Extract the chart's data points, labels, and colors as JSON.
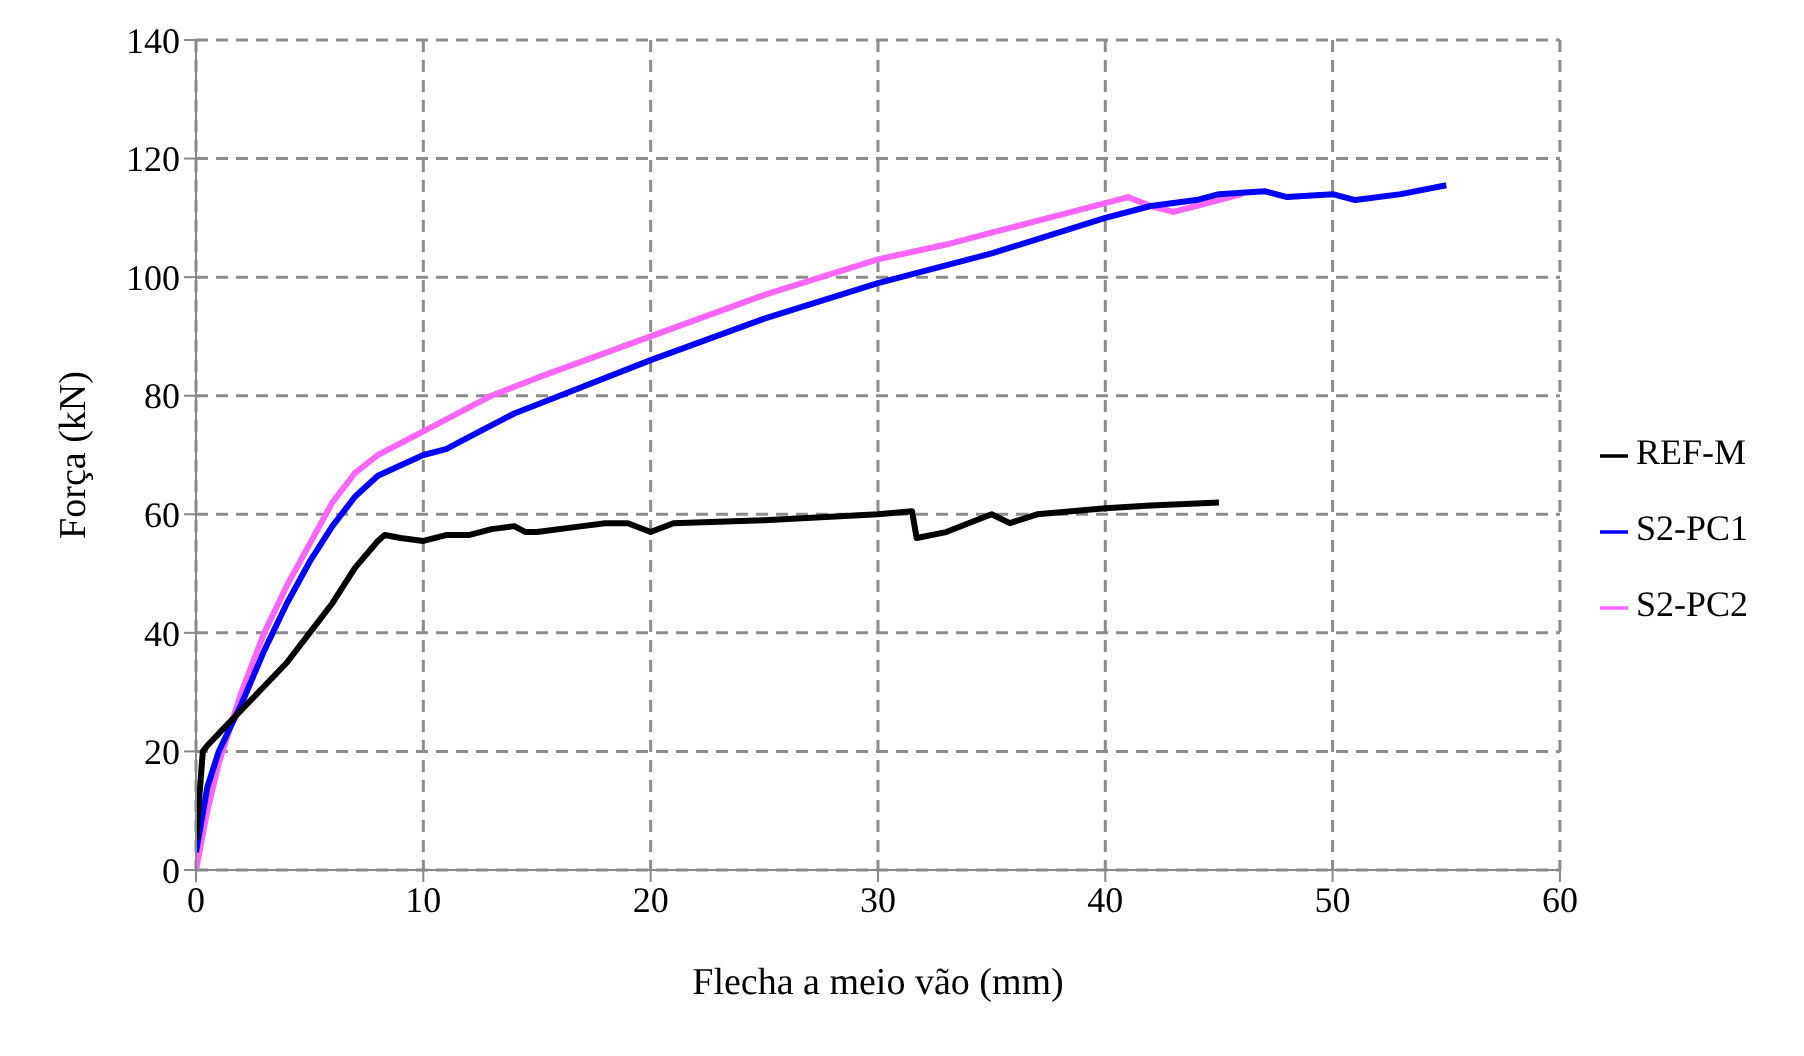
{
  "chart_data": {
    "type": "line",
    "xlabel": "Flecha a meio vão (mm)",
    "ylabel": "Força (kN)",
    "xlim": [
      0,
      60
    ],
    "xticks": [
      0,
      10,
      20,
      30,
      40,
      50,
      60
    ],
    "ylim": [
      0,
      140
    ],
    "yticks": [
      0,
      20,
      40,
      60,
      80,
      100,
      120,
      140
    ],
    "grid": true,
    "legend": "right",
    "marker": "none",
    "line_style": "solid",
    "series": [
      {
        "name": "REF-M",
        "color": "#000000",
        "x": [
          0,
          0.3,
          0.5,
          1,
          2,
          3,
          4,
          5,
          6,
          7,
          8,
          8.3,
          9,
          10,
          11,
          12,
          13,
          14,
          14.5,
          15,
          17,
          18,
          19,
          20,
          21,
          25,
          30,
          31.5,
          31.7,
          33,
          35,
          35.8,
          37,
          40,
          42,
          45
        ],
        "values": [
          5,
          20,
          21,
          23,
          27,
          31,
          35,
          40,
          45,
          51,
          55.5,
          56.5,
          56,
          55.5,
          56.5,
          56.5,
          57.5,
          58,
          57,
          57,
          58,
          58.5,
          58.5,
          57,
          58.5,
          59,
          60,
          60.5,
          56,
          57,
          60,
          58.5,
          60,
          61,
          61.5,
          62
        ]
      },
      {
        "name": "S2-PC1",
        "color": "#0000ff",
        "x": [
          0,
          0.5,
          1,
          2,
          3,
          4,
          5,
          6,
          7,
          8,
          10,
          11,
          12,
          14,
          16,
          20,
          25,
          30,
          35,
          40,
          42,
          44,
          45,
          47,
          48,
          50,
          51,
          53,
          55
        ],
        "values": [
          3,
          14,
          20,
          28,
          37,
          45,
          52,
          58,
          63,
          66.5,
          70,
          71,
          73,
          77,
          80,
          86,
          93,
          99,
          104,
          110,
          112,
          113,
          114,
          114.5,
          113.5,
          114,
          113,
          114,
          115.5
        ]
      },
      {
        "name": "S2-PC2",
        "color": "#ff66ff",
        "x": [
          0,
          0.5,
          1,
          2,
          3,
          4,
          5,
          6,
          7,
          8,
          10,
          13,
          15,
          20,
          25,
          30,
          33,
          35,
          40,
          41,
          42,
          43,
          44,
          46
        ],
        "values": [
          0,
          10,
          18,
          30,
          40,
          48,
          55,
          62,
          67,
          70,
          74,
          80,
          83,
          90,
          97,
          103,
          105.5,
          107.5,
          112.5,
          113.5,
          112,
          111,
          112,
          114
        ]
      }
    ]
  }
}
